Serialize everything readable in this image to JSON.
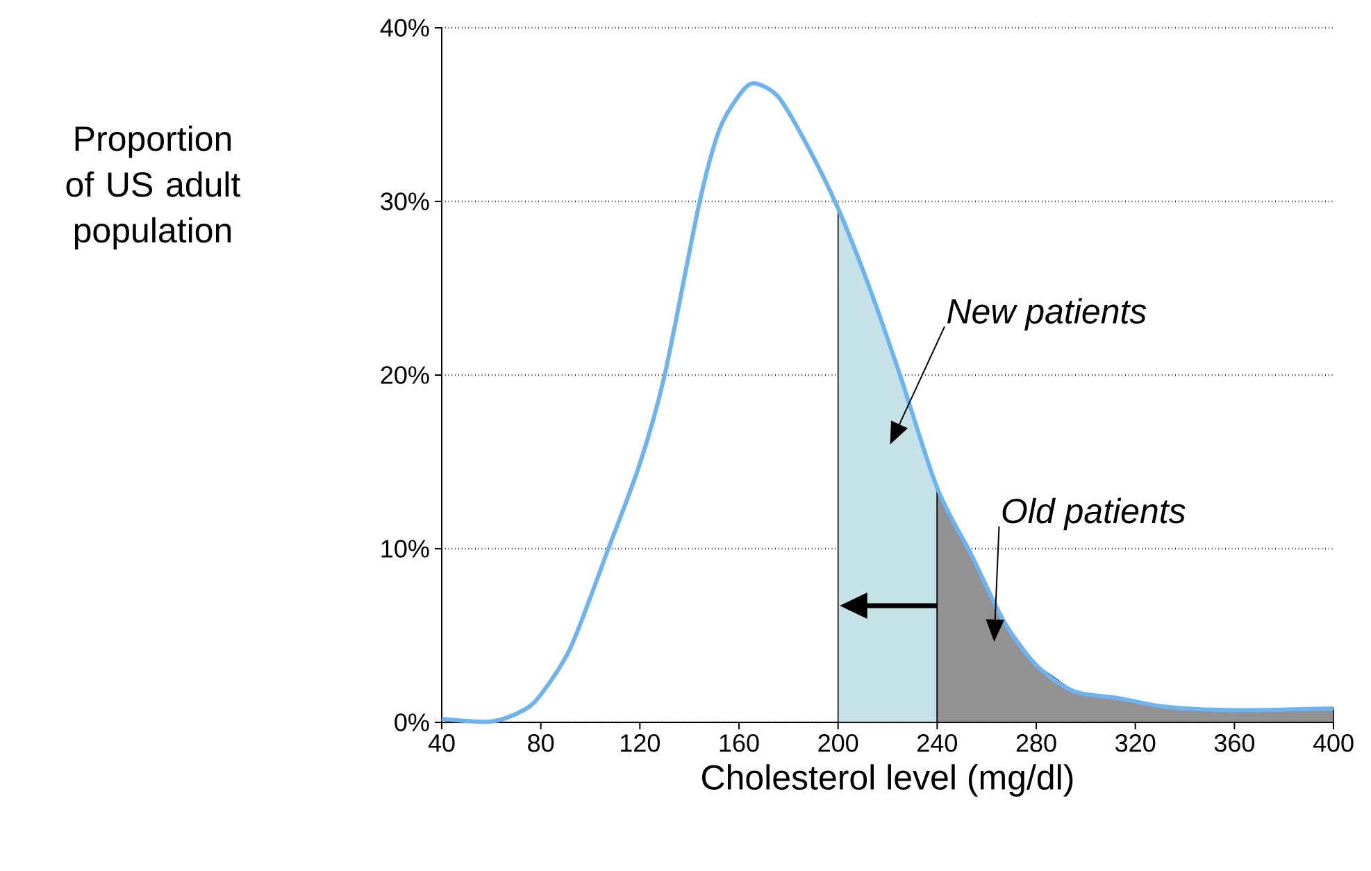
{
  "chart_data": {
    "type": "line",
    "xlabel": "Cholesterol level (mg/dl)",
    "ylabel": "Proportion of US adult population",
    "xlim": [
      40,
      400
    ],
    "xticks": [
      40,
      80,
      120,
      160,
      200,
      240,
      280,
      320,
      360,
      400
    ],
    "ylim": [
      0,
      40
    ],
    "yticks": [
      {
        "value": 0,
        "label": "0%"
      },
      {
        "value": 10,
        "label": "10%"
      },
      {
        "value": 20,
        "label": "20%"
      },
      {
        "value": 30,
        "label": "30%"
      },
      {
        "value": 40,
        "label": "40%"
      }
    ],
    "grid": "y",
    "marker": "none",
    "series": [
      {
        "color": "#6ab4f4",
        "x": [
          40,
          60,
          73,
          80,
          92,
          107,
          120,
          130,
          144,
          152,
          160,
          166,
          176,
          188,
          200,
          212,
          225,
          240,
          254,
          267,
          280,
          295,
          313,
          332,
          360,
          400
        ],
        "values": [
          0.2,
          0.05,
          0.7,
          1.6,
          4.3,
          9.9,
          14.9,
          20,
          29.9,
          34.1,
          36.1,
          36.8,
          36,
          33.1,
          29.6,
          25.3,
          20,
          13.5,
          9.6,
          5.8,
          3.3,
          1.8,
          1.4,
          0.9,
          0.7,
          0.8
        ]
      },
      {
        "type": "area",
        "name": "New patients",
        "color": "#c5e3e6",
        "x": [
          200,
          212,
          225,
          240
        ],
        "values": [
          29.6,
          25.3,
          20,
          13.5
        ]
      },
      {
        "type": "area",
        "name": "Old patients",
        "color": "#929292",
        "x": [
          240,
          254,
          267,
          280,
          295,
          313,
          332,
          360,
          400
        ],
        "values": [
          13.5,
          9.6,
          5.8,
          3.3,
          1.8,
          1.4,
          0.9,
          0.7,
          0.8
        ]
      }
    ]
  }
}
